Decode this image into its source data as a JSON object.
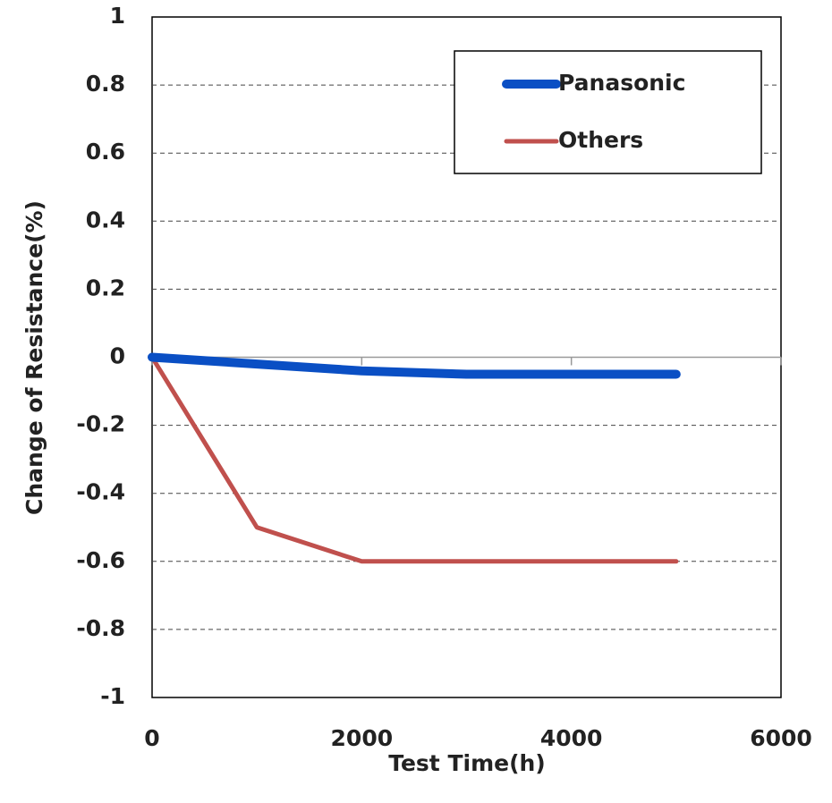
{
  "chart_data": {
    "type": "line",
    "xlabel": "Test Time(h)",
    "ylabel": "Change of Resistance(%)",
    "x": [
      0,
      1000,
      2000,
      3000,
      4000,
      5000
    ],
    "series": [
      {
        "name": "Panasonic",
        "color": "#0a4fc4",
        "width": 10,
        "values": [
          0,
          -0.02,
          -0.04,
          -0.05,
          -0.05,
          -0.05
        ]
      },
      {
        "name": "Others",
        "color": "#c0504d",
        "width": 5,
        "values": [
          0,
          -0.5,
          -0.6,
          -0.6,
          -0.6,
          -0.6
        ]
      }
    ],
    "xlim": [
      0,
      6000
    ],
    "xticks": [
      0,
      2000,
      4000,
      6000
    ],
    "ylim": [
      -1,
      1
    ],
    "yticks": [
      -1,
      -0.8,
      -0.6,
      -0.4,
      -0.2,
      0,
      0.2,
      0.4,
      0.6,
      0.8,
      1
    ],
    "grid": true,
    "legend": "upper right"
  }
}
